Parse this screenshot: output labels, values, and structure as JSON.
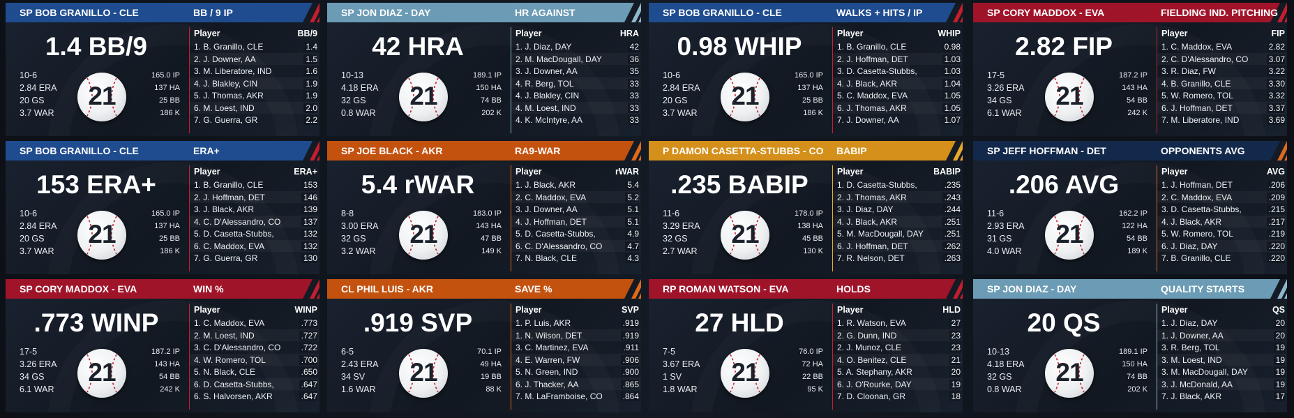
{
  "cards": [
    {
      "player": "SP BOB GRANILLO - CLE",
      "stat": "BB / 9 IP",
      "big": "1.4 BB/9",
      "left": [
        "10-6",
        "2.84 ERA",
        "20 GS",
        "3.7 WAR"
      ],
      "right": [
        "165.0 IP",
        "137 HA",
        "25 BB",
        "186 K"
      ],
      "col": "BB/9",
      "rows": [
        [
          "1. B. Granillo, CLE",
          "1.4"
        ],
        [
          "2. J. Downer, AA",
          "1.5"
        ],
        [
          "3. M. Liberatore, IND",
          "1.6"
        ],
        [
          "4. J. Blakley, CIN",
          "1.9"
        ],
        [
          "5. J. Thomas, AKR",
          "1.9"
        ],
        [
          "6. M. Loest, IND",
          "2.0"
        ],
        [
          "7. G. Guerra, GR",
          "2.2"
        ]
      ],
      "color": "#1f4c8f",
      "accent": "#c41e2e"
    },
    {
      "player": "SP JON DIAZ - DAY",
      "stat": "HR AGAINST",
      "big": "42 HRA",
      "left": [
        "10-13",
        "4.18 ERA",
        "32 GS",
        "0.8 WAR"
      ],
      "right": [
        "189.1 IP",
        "150 HA",
        "74 BB",
        "202 K"
      ],
      "col": "HRA",
      "rows": [
        [
          "1. J. Diaz, DAY",
          "42"
        ],
        [
          "2. M. MacDougall, DAY",
          "36"
        ],
        [
          "3. J. Downer, AA",
          "35"
        ],
        [
          "4. R. Berg, TOL",
          "33"
        ],
        [
          "4. J. Blakley, CIN",
          "33"
        ],
        [
          "4. M. Loest, IND",
          "33"
        ],
        [
          "4. K. McIntyre, AA",
          "33"
        ]
      ],
      "color": "#6b9bb5",
      "accent": "#8fb7cc"
    },
    {
      "player": "SP BOB GRANILLO - CLE",
      "stat": "WALKS + HITS / IP",
      "big": "0.98 WHIP",
      "left": [
        "10-6",
        "2.84 ERA",
        "20 GS",
        "3.7 WAR"
      ],
      "right": [
        "165.0 IP",
        "137 HA",
        "25 BB",
        "186 K"
      ],
      "col": "WHIP",
      "rows": [
        [
          "1. B. Granillo, CLE",
          "0.98"
        ],
        [
          "2. J. Hoffman, DET",
          "1.03"
        ],
        [
          "3. D. Casetta-Stubbs,",
          "1.03"
        ],
        [
          "4. J. Black, AKR",
          "1.04"
        ],
        [
          "5. C. Maddox, EVA",
          "1.05"
        ],
        [
          "6. J. Thomas, AKR",
          "1.05"
        ],
        [
          "7. J. Downer, AA",
          "1.07"
        ]
      ],
      "color": "#1f4c8f",
      "accent": "#c41e2e"
    },
    {
      "player": "SP CORY MADDOX - EVA",
      "stat": "FIELDING IND. PITCHING",
      "big": "2.82 FIP",
      "left": [
        "17-5",
        "3.26 ERA",
        "34 GS",
        "6.1 WAR"
      ],
      "right": [
        "187.2 IP",
        "143 HA",
        "54 BB",
        "242 K"
      ],
      "col": "FIP",
      "rows": [
        [
          "1. C. Maddox, EVA",
          "2.82"
        ],
        [
          "2. C. D'Alessandro, CO",
          "3.07"
        ],
        [
          "3. R. Diaz, FW",
          "3.22"
        ],
        [
          "4. B. Granillo, CLE",
          "3.30"
        ],
        [
          "5. W. Romero, TOL",
          "3.32"
        ],
        [
          "6. J. Hoffman, DET",
          "3.37"
        ],
        [
          "7. M. Liberatore, IND",
          "3.69"
        ]
      ],
      "color": "#a0142a",
      "accent": "#c41e2e"
    },
    {
      "player": "SP BOB GRANILLO - CLE",
      "stat": "ERA+",
      "big": "153 ERA+",
      "left": [
        "10-6",
        "2.84 ERA",
        "20 GS",
        "3.7 WAR"
      ],
      "right": [
        "165.0 IP",
        "137 HA",
        "25 BB",
        "186 K"
      ],
      "col": "ERA+",
      "rows": [
        [
          "1. B. Granillo, CLE",
          "153"
        ],
        [
          "2. J. Hoffman, DET",
          "146"
        ],
        [
          "3. J. Black, AKR",
          "139"
        ],
        [
          "4. C. D'Alessandro, CO",
          "137"
        ],
        [
          "5. D. Casetta-Stubbs,",
          "132"
        ],
        [
          "6. C. Maddox, EVA",
          "132"
        ],
        [
          "7. G. Guerra, GR",
          "130"
        ]
      ],
      "color": "#1f4c8f",
      "accent": "#c41e2e"
    },
    {
      "player": "SP JOE BLACK - AKR",
      "stat": "RA9-WAR",
      "big": "5.4 rWAR",
      "left": [
        "8-8",
        "3.00 ERA",
        "32 GS",
        "3.2 WAR"
      ],
      "right": [
        "183.0 IP",
        "143 HA",
        "47 BB",
        "149 K"
      ],
      "col": "rWAR",
      "rows": [
        [
          "1. J. Black, AKR",
          "5.4"
        ],
        [
          "2. C. Maddox, EVA",
          "5.2"
        ],
        [
          "3. J. Downer, AA",
          "5.1"
        ],
        [
          "4. J. Hoffman, DET",
          "5.1"
        ],
        [
          "5. D. Casetta-Stubbs,",
          "4.9"
        ],
        [
          "6. C. D'Alessandro, CO",
          "4.7"
        ],
        [
          "7. N. Black, CLE",
          "4.3"
        ]
      ],
      "color": "#c4520f",
      "accent": "#e06a1a"
    },
    {
      "player": "P DAMON CASETTA-STUBBS - CO",
      "stat": "BABIP",
      "big": ".235 BABIP",
      "left": [
        "11-6",
        "3.29 ERA",
        "32 GS",
        "2.7 WAR"
      ],
      "right": [
        "178.0 IP",
        "138 HA",
        "45 BB",
        "130 K"
      ],
      "col": "BABIP",
      "rows": [
        [
          "1. D. Casetta-Stubbs,",
          ".235"
        ],
        [
          "2. J. Thomas, AKR",
          ".243"
        ],
        [
          "3. J. Diaz, DAY",
          ".244"
        ],
        [
          "4. J. Black, AKR",
          ".251"
        ],
        [
          "5. M. MacDougall, DAY",
          ".251"
        ],
        [
          "6. J. Hoffman, DET",
          ".262"
        ],
        [
          "7. R. Nelson, DET",
          ".263"
        ]
      ],
      "color": "#d4901a",
      "accent": "#e9a92c"
    },
    {
      "player": "SP JEFF HOFFMAN - DET",
      "stat": "OPPONENTS AVG",
      "big": ".206 AVG",
      "left": [
        "11-6",
        "2.93 ERA",
        "31 GS",
        "4.0 WAR"
      ],
      "right": [
        "162.2 IP",
        "122 HA",
        "54 BB",
        "189 K"
      ],
      "col": "AVG",
      "rows": [
        [
          "1. J. Hoffman, DET",
          ".206"
        ],
        [
          "2. C. Maddox, EVA",
          ".209"
        ],
        [
          "3. D. Casetta-Stubbs,",
          ".215"
        ],
        [
          "4. J. Black, AKR",
          ".217"
        ],
        [
          "5. W. Romero, TOL",
          ".219"
        ],
        [
          "6. J. Diaz, DAY",
          ".220"
        ],
        [
          "7. B. Granillo, CLE",
          ".220"
        ]
      ],
      "color": "#13294b",
      "accent": "#d96a1e"
    },
    {
      "player": "SP CORY MADDOX - EVA",
      "stat": "WIN %",
      "big": ".773 WINP",
      "left": [
        "17-5",
        "3.26 ERA",
        "34 GS",
        "6.1 WAR"
      ],
      "right": [
        "187.2 IP",
        "143 HA",
        "54 BB",
        "242 K"
      ],
      "col": "WINP",
      "rows": [
        [
          "1. C. Maddox, EVA",
          ".773"
        ],
        [
          "2. M. Loest, IND",
          ".727"
        ],
        [
          "3. C. D'Alessandro, CO",
          ".722"
        ],
        [
          "4. W. Romero, TOL",
          ".700"
        ],
        [
          "5. N. Black, CLE",
          ".650"
        ],
        [
          "6. D. Casetta-Stubbs,",
          ".647"
        ],
        [
          "6. S. Halvorsen, AKR",
          ".647"
        ]
      ],
      "color": "#a0142a",
      "accent": "#c41e2e"
    },
    {
      "player": "CL PHIL LUIS - AKR",
      "stat": "SAVE %",
      "big": ".919 SVP",
      "left": [
        "6-5",
        "2.43 ERA",
        "34 SV",
        "1.6 WAR"
      ],
      "right": [
        "70.1 IP",
        "49 HA",
        "19 BB",
        "88 K"
      ],
      "col": "SVP",
      "rows": [
        [
          "1. P. Luis, AKR",
          ".919"
        ],
        [
          "1. N. Wilson, DET",
          ".919"
        ],
        [
          "3. C. Martinez, EVA",
          ".911"
        ],
        [
          "4. E. Warren, FW",
          ".906"
        ],
        [
          "5. N. Green, IND",
          ".900"
        ],
        [
          "6. J. Thacker, AA",
          ".865"
        ],
        [
          "7. M. LaFramboise, CO",
          ".864"
        ]
      ],
      "color": "#c4520f",
      "accent": "#e06a1a"
    },
    {
      "player": "RP ROMAN WATSON - EVA",
      "stat": "HOLDS",
      "big": "27 HLD",
      "left": [
        "7-5",
        "3.67 ERA",
        "1 SV",
        "1.8 WAR"
      ],
      "right": [
        "76.0 IP",
        "72 HA",
        "22 BB",
        "95 K"
      ],
      "col": "HLD",
      "rows": [
        [
          "1. R. Watson, EVA",
          "27"
        ],
        [
          "2. G. Dunn, IND",
          "23"
        ],
        [
          "2. J. Munoz, CLE",
          "23"
        ],
        [
          "4. O. Benitez, CLE",
          "21"
        ],
        [
          "5. A. Stephany, AKR",
          "20"
        ],
        [
          "6. J. O'Rourke, DAY",
          "19"
        ],
        [
          "7. D. Cloonan, GR",
          "18"
        ]
      ],
      "color": "#a0142a",
      "accent": "#c41e2e"
    },
    {
      "player": "SP JON DIAZ - DAY",
      "stat": "QUALITY STARTS",
      "big": "20 QS",
      "left": [
        "10-13",
        "4.18 ERA",
        "32 GS",
        "0.8 WAR"
      ],
      "right": [
        "189.1 IP",
        "150 HA",
        "74 BB",
        "202 K"
      ],
      "col": "QS",
      "rows": [
        [
          "1. J. Diaz, DAY",
          "20"
        ],
        [
          "1. J. Downer, AA",
          "20"
        ],
        [
          "3. R. Berg, TOL",
          "19"
        ],
        [
          "3. M. Loest, IND",
          "19"
        ],
        [
          "3. M. MacDougall, DAY",
          "19"
        ],
        [
          "3. J. McDonald, AA",
          "19"
        ],
        [
          "7. J. Black, AKR",
          "17"
        ]
      ],
      "color": "#6b9bb5",
      "accent": "#8fb7cc"
    }
  ],
  "ball_number": "21",
  "leaderboard_header": "Player"
}
